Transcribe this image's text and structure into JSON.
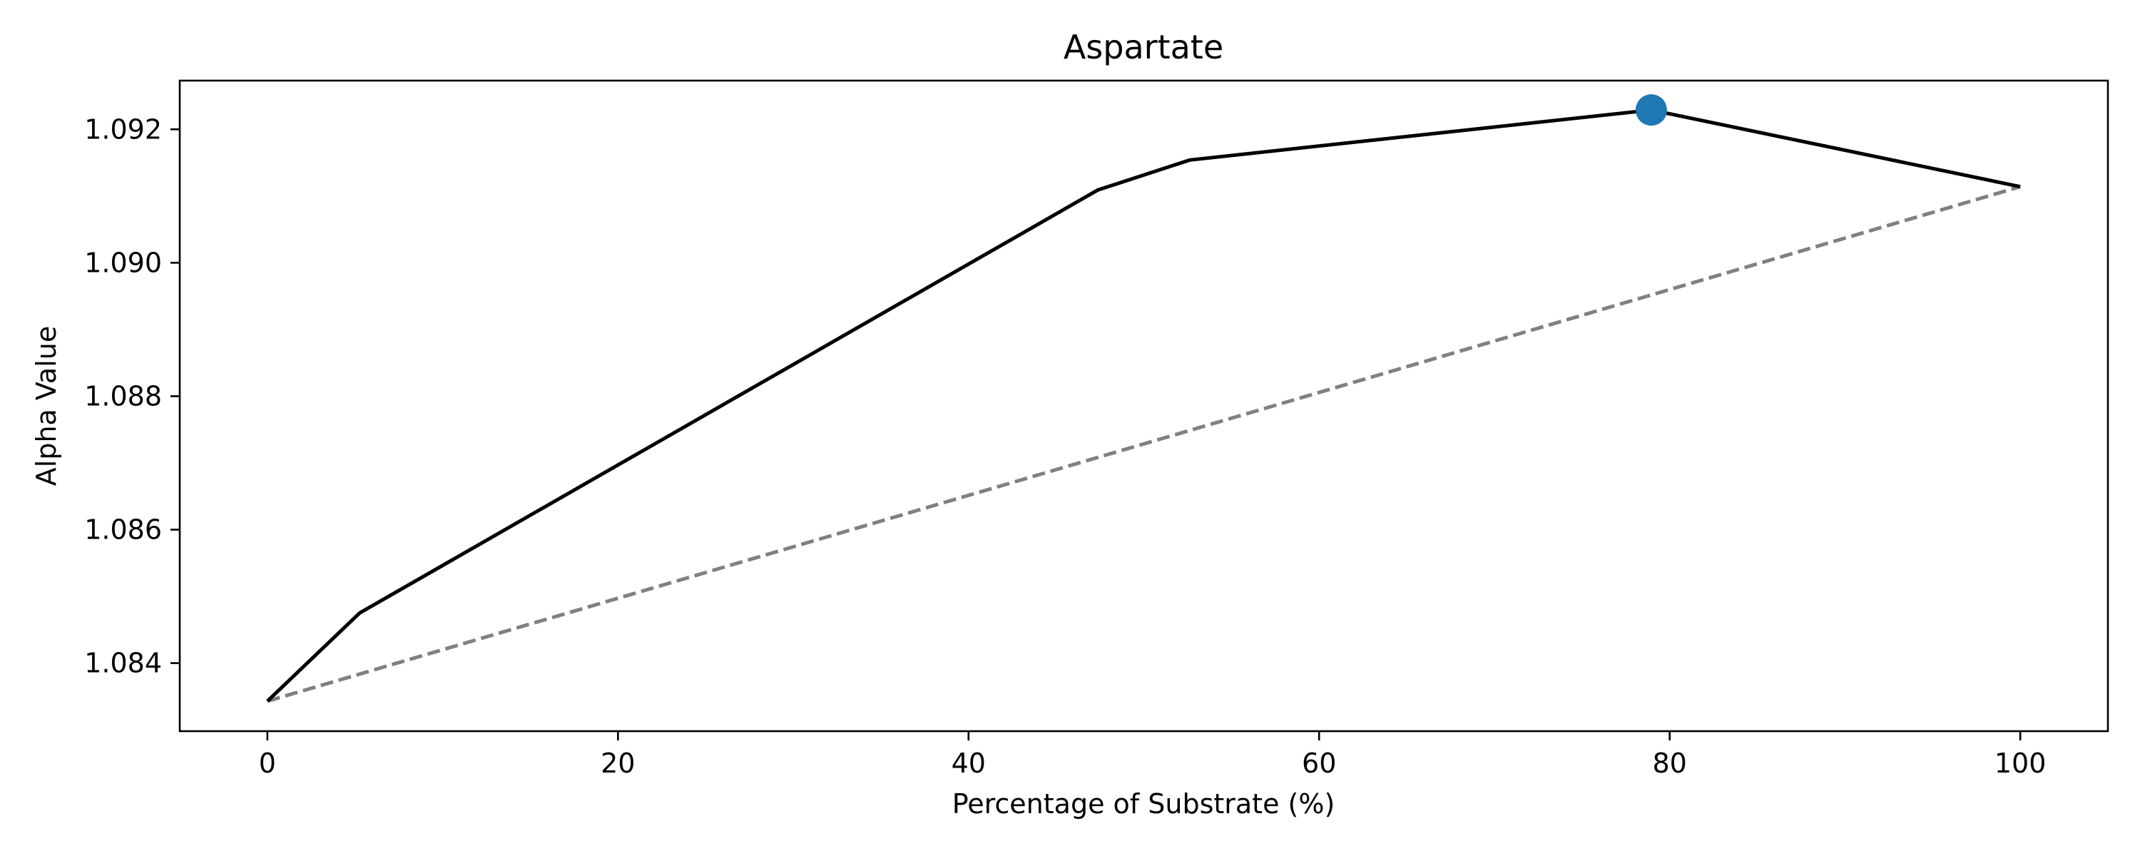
{
  "chart_data": {
    "type": "line",
    "title": "Aspartate",
    "xlabel": "Percentage of Substrate (%)",
    "ylabel": "Alpha Value",
    "xlim": [
      -5,
      105
    ],
    "ylim": [
      1.08298,
      1.09273
    ],
    "xticks": [
      0,
      20,
      40,
      60,
      80,
      100
    ],
    "yticks": [
      1.084,
      1.086,
      1.088,
      1.09,
      1.092
    ],
    "ytick_labels": [
      "1.084",
      "1.086",
      "1.088",
      "1.090",
      "1.092"
    ],
    "grid": false,
    "series": [
      {
        "style": "solid",
        "color": "#000000",
        "x": [
          0,
          5.26,
          47.37,
          52.63,
          78.95,
          100
        ],
        "y": [
          1.08343,
          1.08475,
          1.09109,
          1.09154,
          1.09229,
          1.09114
        ]
      },
      {
        "style": "dashed",
        "color": "#808080",
        "x": [
          0,
          100
        ],
        "y": [
          1.08343,
          1.09114
        ]
      }
    ],
    "highlight_point": {
      "x": 78.95,
      "y": 1.09229,
      "color": "#1f77b4"
    }
  }
}
